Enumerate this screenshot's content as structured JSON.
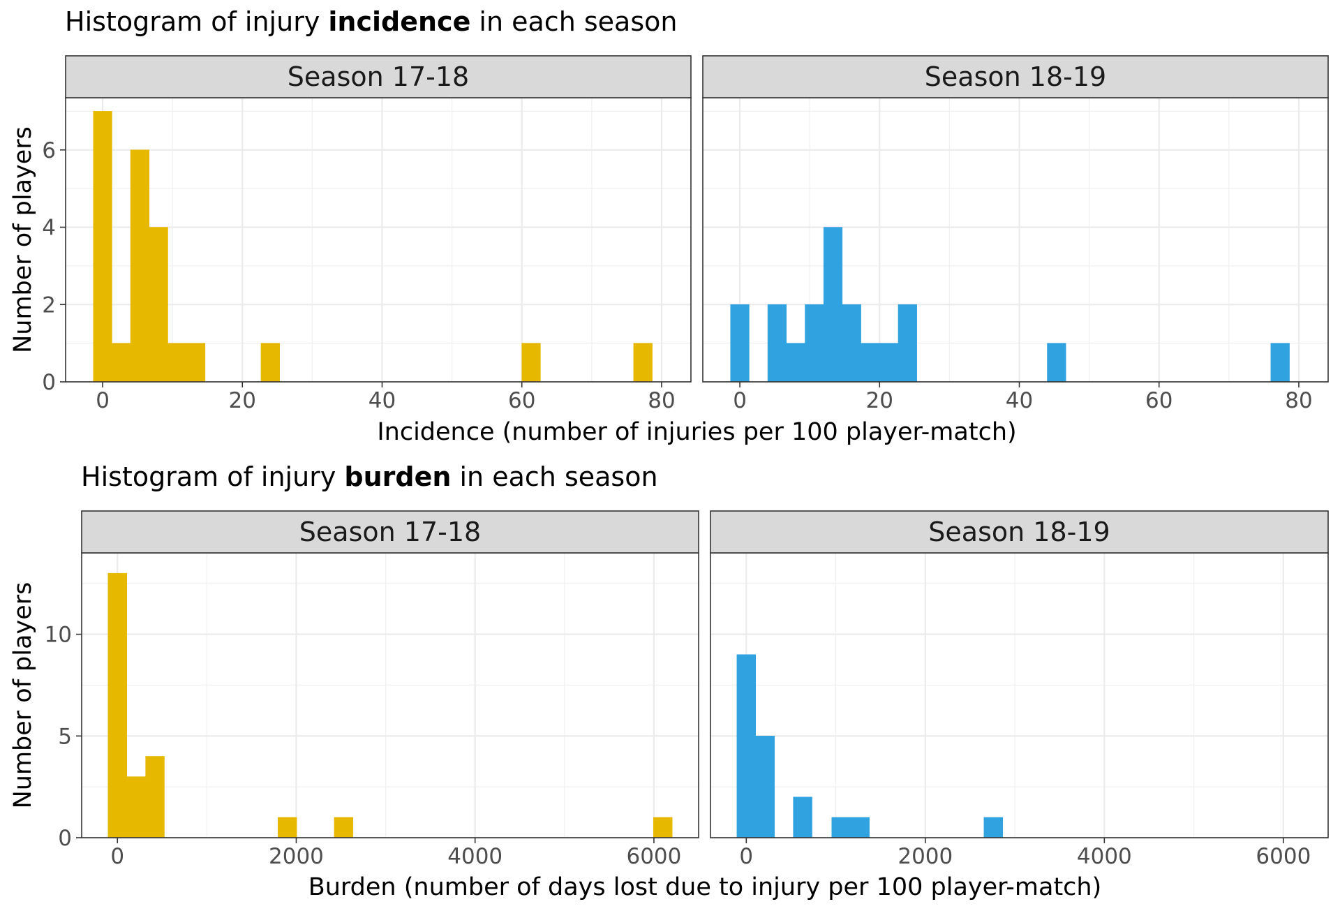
{
  "chart_data": [
    {
      "type": "bar",
      "title": {
        "prefix": "Histogram of injury ",
        "bold": "incidence",
        "suffix": " in each season"
      },
      "xlabel": "Incidence (number of injuries per 100 player-match)",
      "ylabel": "Number of players",
      "xlim": [
        -5.3,
        84.2
      ],
      "ylim": [
        0,
        7.35
      ],
      "x_ticks": [
        0,
        20,
        40,
        60,
        80
      ],
      "y_ticks": [
        0,
        2,
        4,
        6
      ],
      "bin_width": 2.67,
      "grid": true,
      "panels": [
        {
          "strip": "Season 17-18",
          "color": "#E6B800",
          "bins": [
            {
              "x": 0.0,
              "count": 7
            },
            {
              "x": 2.67,
              "count": 1
            },
            {
              "x": 5.33,
              "count": 6
            },
            {
              "x": 8.0,
              "count": 4
            },
            {
              "x": 10.67,
              "count": 1
            },
            {
              "x": 13.33,
              "count": 1
            },
            {
              "x": 24.0,
              "count": 1
            },
            {
              "x": 61.33,
              "count": 1
            },
            {
              "x": 77.33,
              "count": 1
            }
          ]
        },
        {
          "strip": "Season 18-19",
          "color": "#30A2DF",
          "bins": [
            {
              "x": 0.0,
              "count": 2
            },
            {
              "x": 5.33,
              "count": 2
            },
            {
              "x": 8.0,
              "count": 1
            },
            {
              "x": 10.67,
              "count": 2
            },
            {
              "x": 13.33,
              "count": 4
            },
            {
              "x": 16.0,
              "count": 2
            },
            {
              "x": 18.67,
              "count": 1
            },
            {
              "x": 21.33,
              "count": 1
            },
            {
              "x": 24.0,
              "count": 2
            },
            {
              "x": 45.33,
              "count": 1
            },
            {
              "x": 77.33,
              "count": 1
            }
          ]
        }
      ]
    },
    {
      "type": "bar",
      "title": {
        "prefix": "Histogram of injury ",
        "bold": "burden",
        "suffix": " in each season"
      },
      "xlabel": "Burden (number of days lost due to injury per 100 player-match)",
      "ylabel": "Number of players",
      "xlim": [
        -400,
        6500
      ],
      "ylim": [
        0,
        14.0
      ],
      "x_ticks": [
        0,
        2000,
        4000,
        6000
      ],
      "y_ticks": [
        0,
        5,
        10
      ],
      "bin_width": 210,
      "grid": true,
      "panels": [
        {
          "strip": "Season 17-18",
          "color": "#E6B800",
          "bins": [
            {
              "x": 0,
              "count": 13
            },
            {
              "x": 210,
              "count": 3
            },
            {
              "x": 420,
              "count": 4
            },
            {
              "x": 1900,
              "count": 1
            },
            {
              "x": 2530,
              "count": 1
            },
            {
              "x": 6100,
              "count": 1
            }
          ]
        },
        {
          "strip": "Season 18-19",
          "color": "#30A2DF",
          "bins": [
            {
              "x": 0,
              "count": 9
            },
            {
              "x": 210,
              "count": 5
            },
            {
              "x": 630,
              "count": 2
            },
            {
              "x": 1060,
              "count": 1
            },
            {
              "x": 1270,
              "count": 1
            },
            {
              "x": 2760,
              "count": 1
            }
          ]
        }
      ]
    }
  ]
}
